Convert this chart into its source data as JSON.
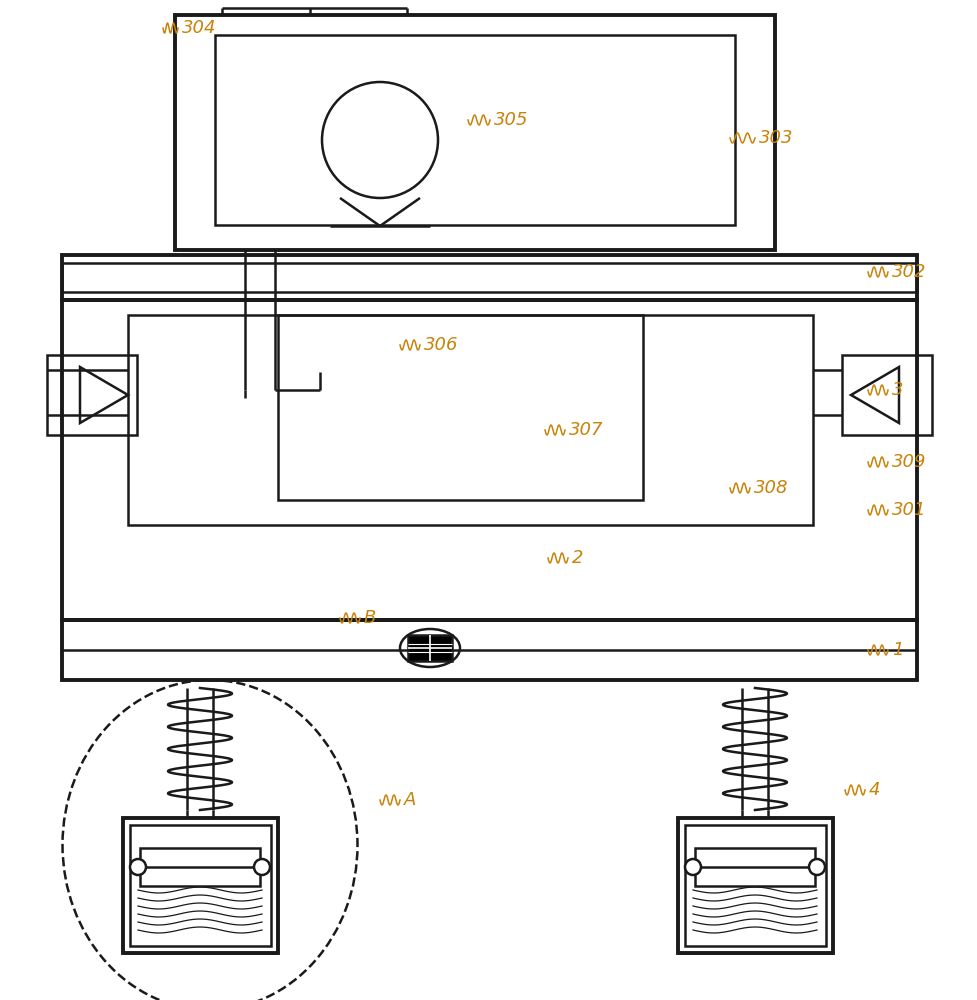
{
  "bg_color": "#ffffff",
  "line_color": "#1a1a1a",
  "label_color": "#c8830a",
  "figsize": [
    9.77,
    10.0
  ],
  "dpi": 100,
  "lw": 1.8,
  "lw2": 2.8
}
